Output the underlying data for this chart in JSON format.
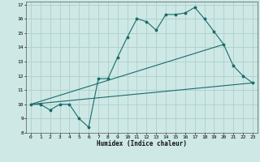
{
  "xlabel": "Humidex (Indice chaleur)",
  "bg_color": "#cde8e5",
  "grid_color": "#afd0cc",
  "line_color": "#1a6b6b",
  "xlim": [
    -0.5,
    23.5
  ],
  "ylim": [
    8,
    17.2
  ],
  "xticks": [
    0,
    1,
    2,
    3,
    4,
    5,
    6,
    7,
    8,
    9,
    10,
    11,
    12,
    13,
    14,
    15,
    16,
    17,
    18,
    19,
    20,
    21,
    22,
    23
  ],
  "yticks": [
    8,
    9,
    10,
    11,
    12,
    13,
    14,
    15,
    16,
    17
  ],
  "series1": [
    [
      0,
      10
    ],
    [
      1,
      10
    ],
    [
      2,
      9.6
    ],
    [
      3,
      10
    ],
    [
      4,
      10
    ],
    [
      5,
      9
    ],
    [
      6,
      8.4
    ],
    [
      7,
      11.8
    ],
    [
      8,
      11.8
    ],
    [
      9,
      13.3
    ],
    [
      10,
      14.7
    ],
    [
      11,
      16
    ],
    [
      12,
      15.8
    ],
    [
      13,
      15.2
    ],
    [
      14,
      16.3
    ],
    [
      15,
      16.3
    ],
    [
      16,
      16.4
    ],
    [
      17,
      16.8
    ],
    [
      18,
      16
    ],
    [
      19,
      15.1
    ],
    [
      20,
      14.2
    ],
    [
      21,
      12.7
    ],
    [
      22,
      12
    ],
    [
      23,
      11.5
    ]
  ],
  "line1_x": [
    0,
    20
  ],
  "line1_y": [
    10,
    14.2
  ],
  "line2_x": [
    0,
    23
  ],
  "line2_y": [
    10,
    11.5
  ]
}
